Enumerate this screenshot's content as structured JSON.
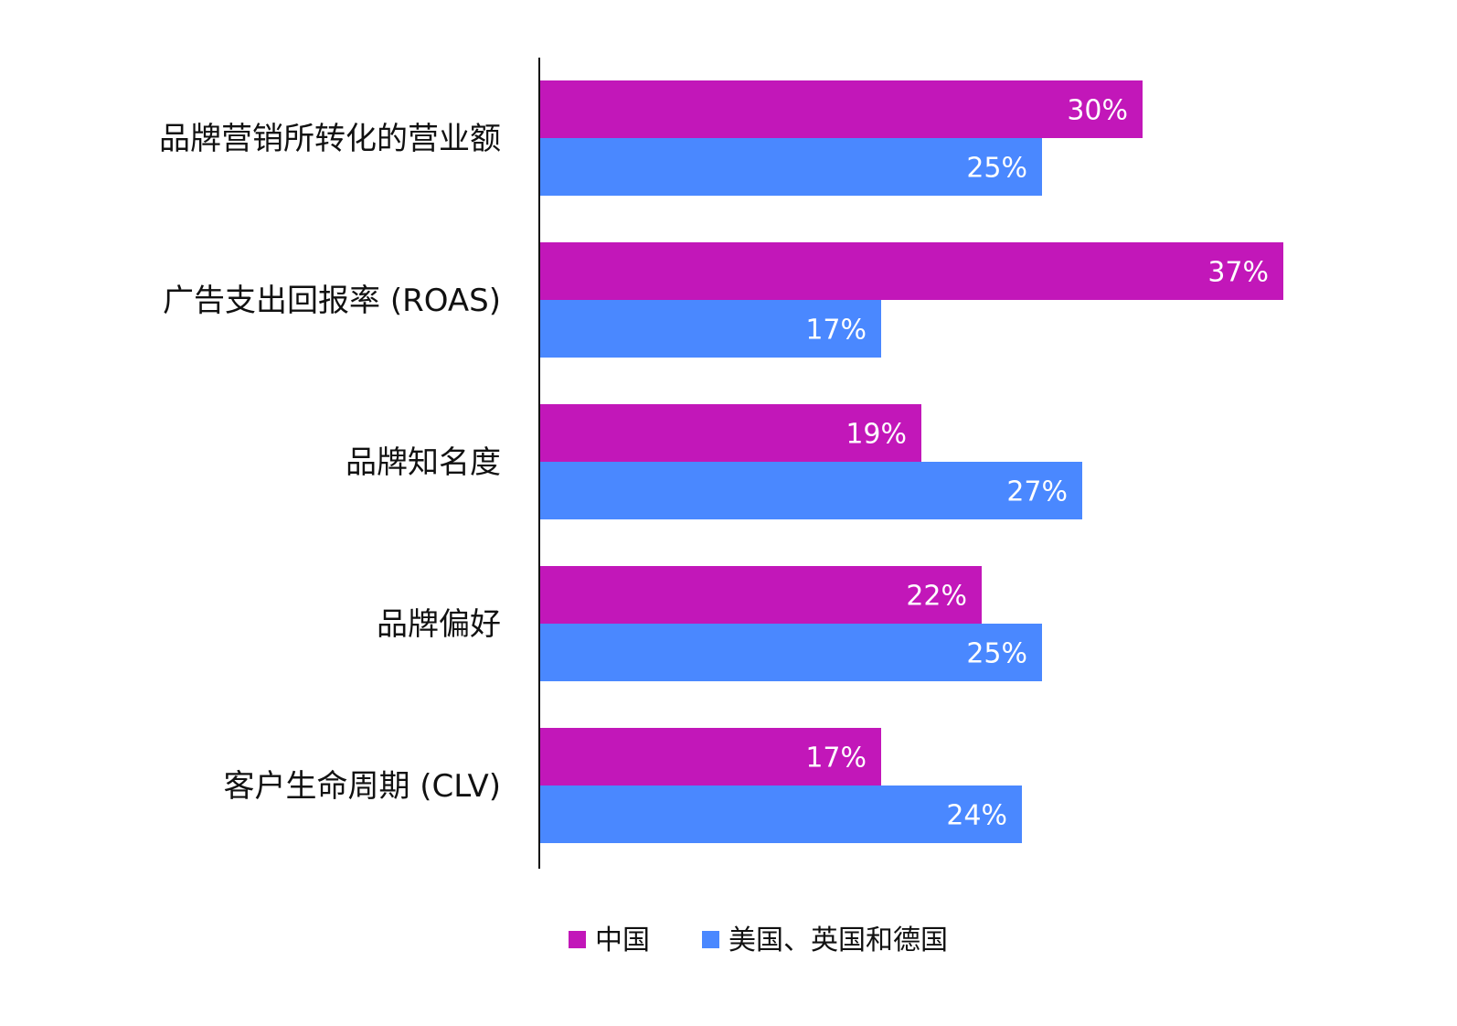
{
  "chart_data": {
    "type": "bar",
    "orientation": "horizontal",
    "categories": [
      "品牌营销所转化的营业额",
      "广告支出回报率 (ROAS)",
      "品牌知名度",
      "品牌偏好",
      "客户生命周期 (CLV)"
    ],
    "series": [
      {
        "name": "中国",
        "color": "#C217B9",
        "values": [
          30,
          37,
          19,
          22,
          17
        ]
      },
      {
        "name": "美国、英国和德国",
        "color": "#4A88FF",
        "values": [
          25,
          17,
          27,
          25,
          24
        ]
      }
    ],
    "value_suffix": "%",
    "xlim": [
      0,
      37
    ],
    "grid": false,
    "legend_position": "bottom"
  }
}
